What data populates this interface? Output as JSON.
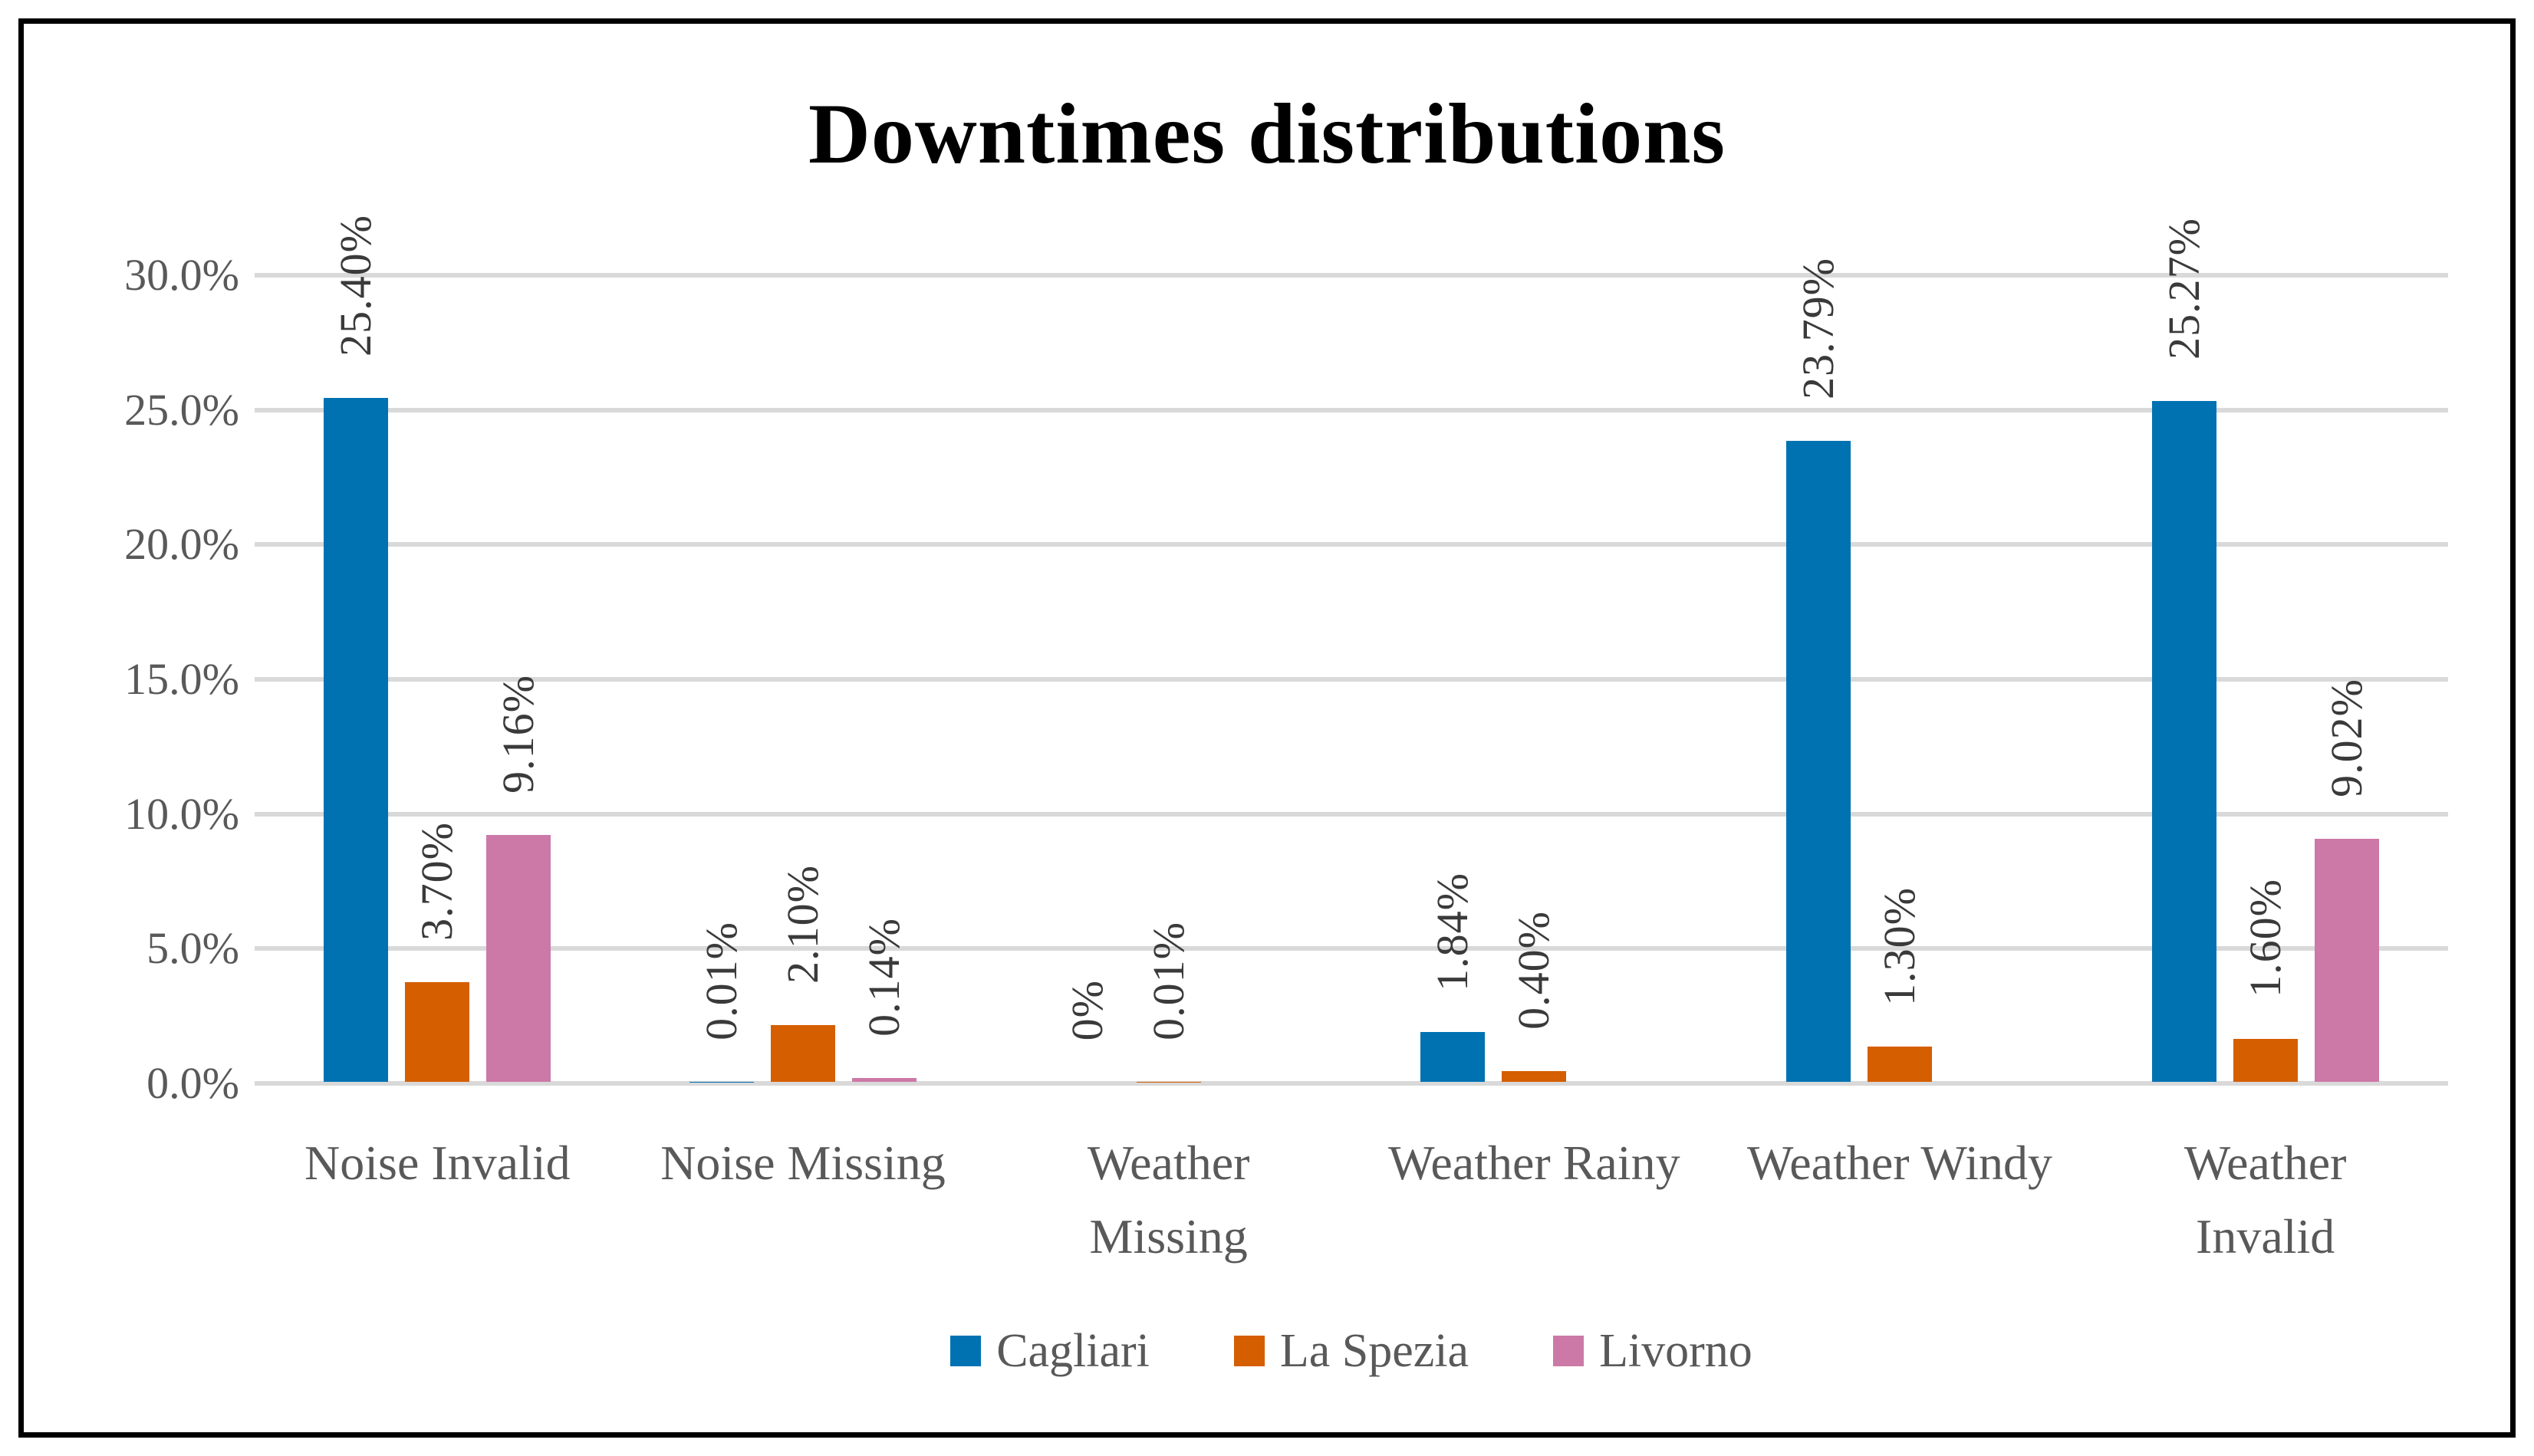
{
  "chart_data": {
    "type": "bar",
    "title": "Downtimes distributions",
    "categories": [
      "Noise Invalid",
      "Noise Missing",
      "Weather Missing",
      "Weather Rainy",
      "Weather Windy",
      "Weather Invalid"
    ],
    "category_label_lines": [
      [
        "Noise Invalid"
      ],
      [
        "Noise Missing"
      ],
      [
        "Weather",
        "Missing"
      ],
      [
        "Weather Rainy"
      ],
      [
        "Weather Windy"
      ],
      [
        "Weather",
        "Invalid"
      ]
    ],
    "series": [
      {
        "name": "Cagliari",
        "color": "#0072B2",
        "values": [
          25.4,
          0.01,
          0,
          1.84,
          23.79,
          25.27
        ],
        "labels": [
          "25.40%",
          "0.01%",
          "0%",
          "1.84%",
          "23.79%",
          "25.27%"
        ]
      },
      {
        "name": "La Spezia",
        "color": "#D55E00",
        "values": [
          3.7,
          2.1,
          0.01,
          0.4,
          1.3,
          1.6
        ],
        "labels": [
          "3.70%",
          "2.10%",
          "0.01%",
          "0.40%",
          "1.30%",
          "1.60%"
        ]
      },
      {
        "name": "Livorno",
        "color": "#CC79A7",
        "values": [
          9.16,
          0.14,
          null,
          null,
          null,
          9.02
        ],
        "labels": [
          "9.16%",
          "0.14%",
          "",
          "",
          "",
          "9.02%"
        ]
      }
    ],
    "y_axis": {
      "min": 0,
      "max": 30,
      "step": 5,
      "tick_labels_top_to_bottom": [
        "30.0%",
        "25.0%",
        "20.0%",
        "15.0%",
        "10.0%",
        "5.0%",
        "0.0%"
      ]
    },
    "legend_position": "bottom",
    "grid": true,
    "colors": {
      "gridline": "#D9D9D9",
      "axis_text": "#595959",
      "data_label_text": "#3A3A3A",
      "title_text": "#000000",
      "frame_border": "#000000",
      "background": "#FFFFFF"
    }
  }
}
